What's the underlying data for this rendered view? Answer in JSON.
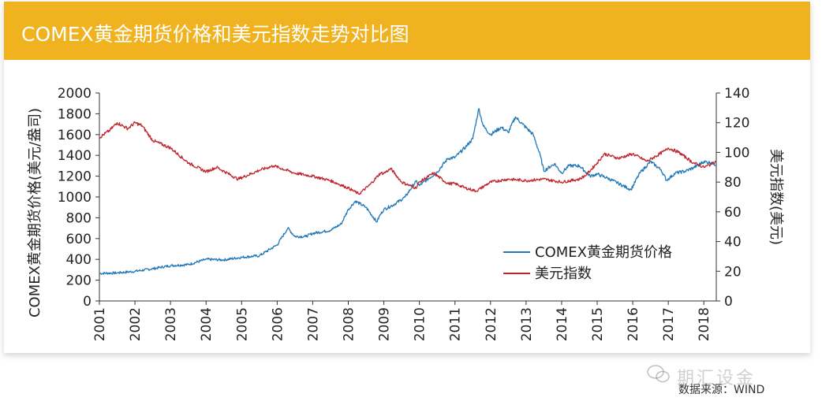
{
  "header": {
    "title": "COMEX黄金期货价格和美元指数走势对比图",
    "color": "#f0b31f"
  },
  "footer": {
    "source": "数据来源：WIND",
    "watermark": "期汇设金"
  },
  "chart_data": {
    "type": "line",
    "title": "COMEX黄金期货价格和美元指数走势对比图",
    "xlabel": "",
    "ylabel": "COMEX黄金期货价格(美元/盎司)",
    "y2label": "美元指数(美元)",
    "ylim": [
      0,
      2000
    ],
    "y2lim": [
      0,
      140
    ],
    "yticks": [
      0,
      200,
      400,
      600,
      800,
      1000,
      1200,
      1400,
      1600,
      1800,
      2000
    ],
    "y2ticks": [
      0,
      20,
      40,
      60,
      80,
      100,
      120,
      140
    ],
    "xlim": [
      2001,
      2018.35
    ],
    "xticks": [
      "2001",
      "2002",
      "2003",
      "2004",
      "2005",
      "2006",
      "2007",
      "2008",
      "2009",
      "2010",
      "2011",
      "2012",
      "2013",
      "2014",
      "2015",
      "2016",
      "2017",
      "2018"
    ],
    "legend": "inside-lower-right",
    "series": [
      {
        "name": "COMEX黄金期货价格",
        "axis": "left",
        "color": "#1f78b8",
        "x": [
          2001.0,
          2001.5,
          2002.0,
          2002.5,
          2003.0,
          2003.5,
          2004.0,
          2004.5,
          2005.0,
          2005.5,
          2006.0,
          2006.3,
          2006.5,
          2006.8,
          2007.0,
          2007.5,
          2007.8,
          2008.0,
          2008.2,
          2008.5,
          2008.8,
          2008.9,
          2009.0,
          2009.3,
          2009.6,
          2009.9,
          2010.0,
          2010.5,
          2010.8,
          2011.0,
          2011.3,
          2011.5,
          2011.67,
          2011.8,
          2012.0,
          2012.3,
          2012.5,
          2012.7,
          2012.9,
          2013.2,
          2013.4,
          2013.5,
          2013.8,
          2014.0,
          2014.2,
          2014.5,
          2014.8,
          2015.0,
          2015.3,
          2015.6,
          2015.95,
          2016.2,
          2016.5,
          2016.8,
          2016.95,
          2017.2,
          2017.5,
          2017.7,
          2018.0,
          2018.2,
          2018.35
        ],
        "values": [
          265,
          270,
          285,
          310,
          340,
          350,
          400,
          395,
          420,
          435,
          540,
          700,
          620,
          620,
          650,
          680,
          740,
          880,
          960,
          900,
          760,
          830,
          880,
          930,
          1000,
          1150,
          1110,
          1240,
          1370,
          1380,
          1480,
          1560,
          1850,
          1680,
          1600,
          1670,
          1620,
          1770,
          1700,
          1600,
          1400,
          1250,
          1320,
          1230,
          1300,
          1300,
          1200,
          1220,
          1180,
          1130,
          1070,
          1230,
          1340,
          1260,
          1160,
          1230,
          1250,
          1280,
          1340,
          1330,
          1310
        ]
      },
      {
        "name": "美元指数",
        "axis": "right",
        "color": "#c0262e",
        "x": [
          2001.0,
          2001.3,
          2001.5,
          2001.8,
          2002.0,
          2002.2,
          2002.5,
          2003.0,
          2003.5,
          2004.0,
          2004.3,
          2004.9,
          2005.5,
          2005.9,
          2006.5,
          2007.0,
          2007.5,
          2008.0,
          2008.3,
          2008.6,
          2008.9,
          2009.0,
          2009.2,
          2009.5,
          2009.9,
          2010.0,
          2010.4,
          2010.8,
          2011.0,
          2011.3,
          2011.6,
          2012.0,
          2012.5,
          2013.0,
          2013.5,
          2014.0,
          2014.5,
          2014.7,
          2015.0,
          2015.2,
          2015.6,
          2016.0,
          2016.4,
          2016.9,
          2017.0,
          2017.3,
          2017.7,
          2018.0,
          2018.2,
          2018.35
        ],
        "values": [
          110,
          115,
          120,
          116,
          120,
          118,
          108,
          103,
          93,
          87,
          90,
          82,
          88,
          91,
          86,
          84,
          81,
          76,
          72,
          78,
          86,
          86,
          89,
          80,
          76,
          80,
          86,
          79,
          79,
          76,
          74,
          80,
          82,
          81,
          82,
          80,
          82,
          85,
          93,
          99,
          96,
          99,
          94,
          101,
          103,
          100,
          93,
          90,
          92,
          94
        ]
      }
    ]
  }
}
